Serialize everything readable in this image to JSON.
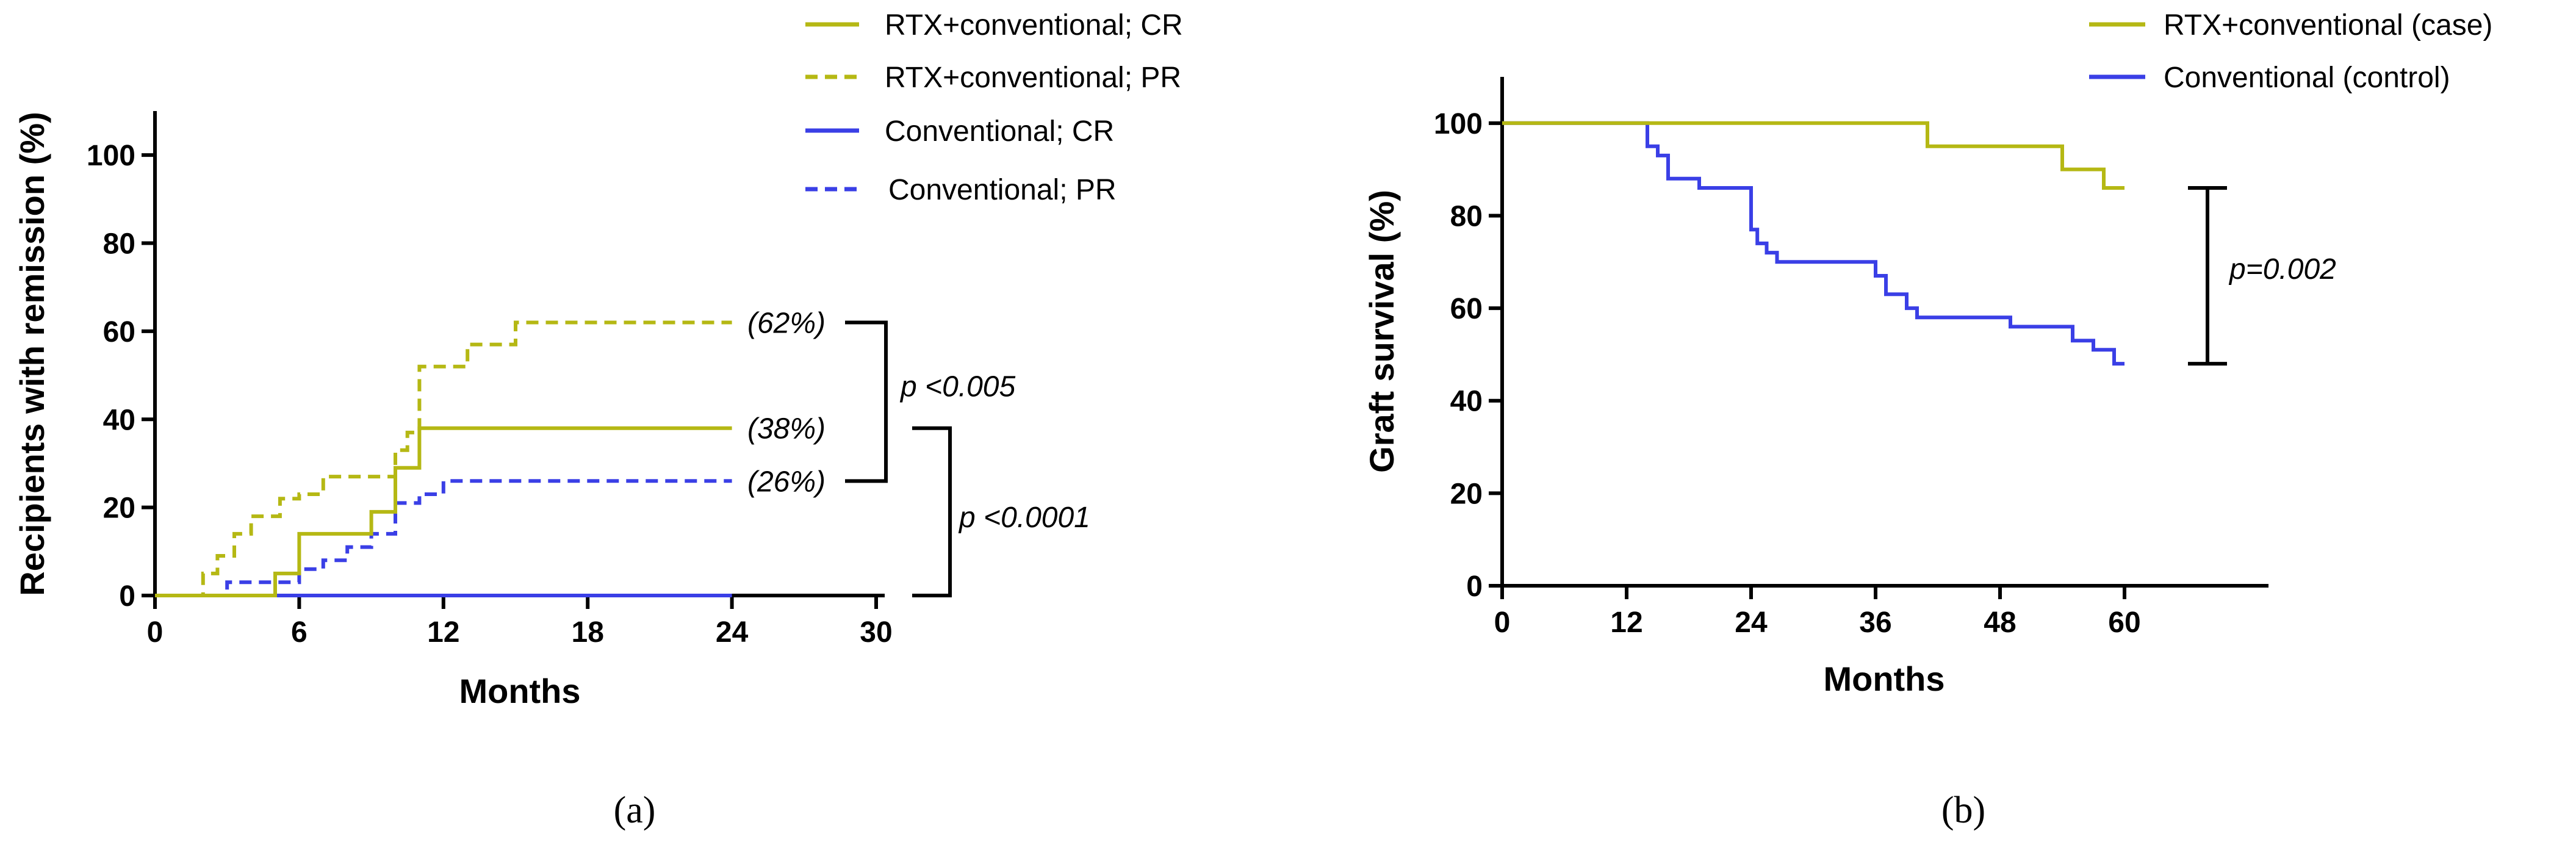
{
  "colors": {
    "rtx": "#b5b814",
    "conv": "#3a3fe6",
    "axis": "#000000"
  },
  "chart_data": [
    {
      "type": "line",
      "subtype": "kaplan-meier-step",
      "panel_label": "(a)",
      "xlabel": "Months",
      "ylabel": "Recipients with remission (%)",
      "xlim": [
        0,
        30
      ],
      "ylim": [
        0,
        110
      ],
      "xticks": [
        0,
        6,
        12,
        18,
        24,
        30
      ],
      "yticks": [
        0,
        20,
        40,
        60,
        80,
        100
      ],
      "series": [
        {
          "name": "RTX+conventional; CR",
          "color_key": "rtx",
          "dashed": false,
          "x": [
            0,
            5,
            5,
            6,
            6,
            9,
            9,
            10,
            10,
            11,
            11,
            24
          ],
          "y": [
            0,
            0,
            5,
            5,
            14,
            14,
            19,
            19,
            29,
            29,
            38,
            38
          ]
        },
        {
          "name": "RTX+conventional; PR",
          "color_key": "rtx",
          "dashed": true,
          "x": [
            0,
            2,
            2,
            2.6,
            2.6,
            3.3,
            3.3,
            4,
            4,
            5.2,
            5.2,
            6,
            6,
            7,
            7,
            10,
            10,
            10.5,
            10.5,
            11,
            11,
            13,
            13,
            15,
            15,
            24
          ],
          "y": [
            0,
            0,
            5,
            5,
            9,
            9,
            14,
            14,
            18,
            18,
            22,
            22,
            23,
            23,
            27,
            27,
            33,
            33,
            37,
            37,
            52,
            52,
            57,
            57,
            62,
            62
          ]
        },
        {
          "name": "Conventional; CR",
          "color_key": "conv",
          "dashed": false,
          "x": [
            0,
            24
          ],
          "y": [
            0,
            0
          ]
        },
        {
          "name": "Conventional; PR",
          "color_key": "conv",
          "dashed": true,
          "x": [
            0,
            3,
            3,
            6,
            6,
            7,
            7,
            8,
            8,
            9,
            9,
            10,
            10,
            11,
            11,
            12,
            12,
            24
          ],
          "y": [
            0,
            0,
            3,
            3,
            6,
            6,
            8,
            8,
            11,
            11,
            14,
            14,
            21,
            21,
            23,
            23,
            26,
            26
          ]
        }
      ],
      "end_labels": [
        {
          "text": "(62%)",
          "y": 62
        },
        {
          "text": "(38%)",
          "y": 38
        },
        {
          "text": "(26%)",
          "y": 26
        }
      ],
      "brackets": [
        {
          "text": "p <0.005",
          "y_top": 62,
          "y_bottom": 26
        },
        {
          "text": "p <0.0001",
          "y_top": 38,
          "y_bottom": 0
        }
      ]
    },
    {
      "type": "line",
      "subtype": "kaplan-meier-step",
      "panel_label": "(b)",
      "xlabel": "Months",
      "ylabel": "Graft survival (%)",
      "xlim": [
        0,
        72
      ],
      "ylim": [
        0,
        110
      ],
      "xticks": [
        0,
        12,
        24,
        36,
        48,
        60
      ],
      "yticks": [
        0,
        20,
        40,
        60,
        80,
        100
      ],
      "series": [
        {
          "name": "RTX+conventional (case)",
          "color_key": "rtx",
          "dashed": false,
          "x": [
            0,
            41,
            41,
            54,
            54,
            58,
            58,
            60
          ],
          "y": [
            100,
            100,
            95,
            95,
            90,
            90,
            86,
            86
          ]
        },
        {
          "name": "Conventional (control)",
          "color_key": "conv",
          "dashed": false,
          "x": [
            0,
            14,
            14,
            15,
            15,
            16,
            16,
            19,
            19,
            24,
            24,
            24.6,
            24.6,
            25.5,
            25.5,
            26.5,
            26.5,
            36,
            36,
            37,
            37,
            39,
            39,
            40,
            40,
            49,
            49,
            55,
            55,
            57,
            57,
            59,
            59,
            60
          ],
          "y": [
            100,
            100,
            95,
            95,
            93,
            93,
            88,
            88,
            86,
            86,
            77,
            77,
            74,
            74,
            72,
            72,
            70,
            70,
            67,
            67,
            63,
            63,
            60,
            60,
            58,
            58,
            56,
            56,
            53,
            53,
            51,
            51,
            48,
            48
          ]
        }
      ],
      "brackets": [
        {
          "text": "p=0.002",
          "y_top": 86,
          "y_bottom": 48
        }
      ]
    }
  ]
}
